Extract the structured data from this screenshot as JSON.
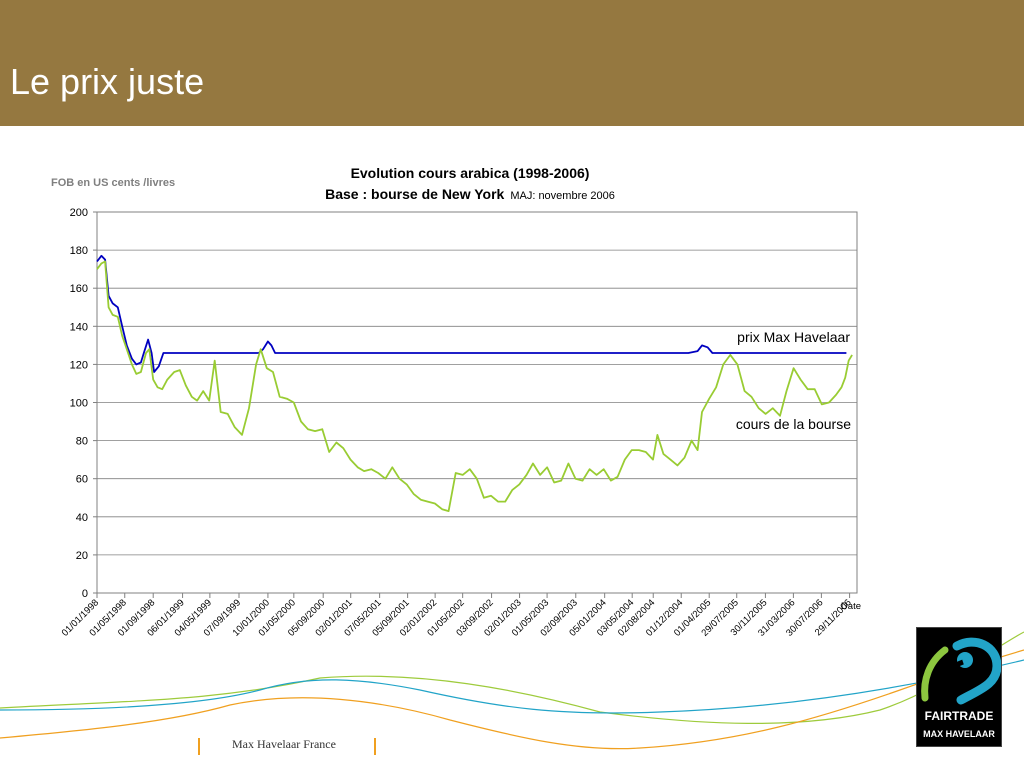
{
  "slide": {
    "title": "Le prix juste",
    "unit_label": "FOB en US cents /livres",
    "footer_text": "Max Havelaar France",
    "logo": {
      "line1": "FAIRTRADE",
      "line2": "MAX HAVELAAR",
      "icon": "fairtrade-mark-icon"
    }
  },
  "colors": {
    "header": "#957840",
    "min_price_line": "#0000c0",
    "market_line": "#99cc33",
    "grid": "#808080",
    "footer_accent": "#f0a020"
  },
  "chart_data": {
    "type": "line",
    "title": "Evolution cours arabica (1998-2006)",
    "subtitle": "Base :  bourse de New York",
    "update_note": "MAJ: novembre 2006",
    "xlabel": "Date",
    "ylabel": "",
    "ylim": [
      0,
      200
    ],
    "yticks": [
      0,
      20,
      40,
      60,
      80,
      100,
      120,
      140,
      160,
      180,
      200
    ],
    "xlim": [
      "1998-01-01",
      "2006-12-31"
    ],
    "xtick_labels": [
      "01/01/1998",
      "01/05/1998",
      "01/09/1998",
      "06/01/1999",
      "04/05/1999",
      "07/09/1999",
      "10/01/2000",
      "01/05/2000",
      "05/09/2000",
      "02/01/2001",
      "07/05/2001",
      "05/09/2001",
      "02/01/2002",
      "01/05/2002",
      "03/09/2002",
      "02/01/2003",
      "01/05/2003",
      "02/09/2003",
      "05/01/2004",
      "03/05/2004",
      "02/08/2004",
      "01/12/2004",
      "01/04/2005",
      "29/07/2005",
      "30/11/2005",
      "31/03/2006",
      "30/07/2006",
      "29/11/2006"
    ],
    "xtick_dates": [
      "1998-01-01",
      "1998-05-01",
      "1998-09-01",
      "1999-01-06",
      "1999-05-04",
      "1999-09-07",
      "2000-01-10",
      "2000-05-01",
      "2000-09-05",
      "2001-01-02",
      "2001-05-07",
      "2001-09-05",
      "2002-01-02",
      "2002-05-01",
      "2002-09-03",
      "2003-01-02",
      "2003-05-01",
      "2003-09-02",
      "2004-01-05",
      "2004-05-03",
      "2004-08-02",
      "2004-12-01",
      "2005-04-01",
      "2005-07-29",
      "2005-11-30",
      "2006-03-31",
      "2006-07-30",
      "2006-11-29"
    ],
    "grid": true,
    "series": [
      {
        "name": "prix Max Havelaar",
        "points": [
          [
            "1998-01-01",
            174
          ],
          [
            "1998-01-20",
            177
          ],
          [
            "1998-02-05",
            175
          ],
          [
            "1998-02-20",
            156
          ],
          [
            "1998-03-10",
            152
          ],
          [
            "1998-04-01",
            150
          ],
          [
            "1998-04-20",
            140
          ],
          [
            "1998-05-10",
            130
          ],
          [
            "1998-06-01",
            123
          ],
          [
            "1998-06-20",
            120
          ],
          [
            "1998-07-10",
            121
          ],
          [
            "1998-07-25",
            127
          ],
          [
            "1998-08-10",
            133
          ],
          [
            "1998-08-25",
            126
          ],
          [
            "1998-09-05",
            116
          ],
          [
            "1998-09-25",
            119
          ],
          [
            "1998-10-15",
            126
          ],
          [
            "1999-01-01",
            126
          ],
          [
            "1999-06-01",
            126
          ],
          [
            "1999-09-01",
            126
          ],
          [
            "1999-12-01",
            126
          ],
          [
            "1999-12-20",
            128
          ],
          [
            "2000-01-10",
            132
          ],
          [
            "2000-01-25",
            130
          ],
          [
            "2000-02-10",
            126
          ],
          [
            "2000-06-01",
            126
          ],
          [
            "2001-06-01",
            126
          ],
          [
            "2002-06-01",
            126
          ],
          [
            "2003-06-01",
            126
          ],
          [
            "2004-06-01",
            126
          ],
          [
            "2005-01-01",
            126
          ],
          [
            "2005-02-10",
            127
          ],
          [
            "2005-03-01",
            130
          ],
          [
            "2005-03-25",
            129
          ],
          [
            "2005-04-15",
            126
          ],
          [
            "2005-06-01",
            126
          ],
          [
            "2006-01-01",
            126
          ],
          [
            "2006-06-01",
            126
          ],
          [
            "2006-11-15",
            126
          ]
        ]
      },
      {
        "name": "cours de la bourse",
        "points": [
          [
            "1998-01-01",
            170
          ],
          [
            "1998-01-20",
            173
          ],
          [
            "1998-02-05",
            174
          ],
          [
            "1998-02-20",
            150
          ],
          [
            "1998-03-10",
            146
          ],
          [
            "1998-04-01",
            145
          ],
          [
            "1998-04-20",
            135
          ],
          [
            "1998-05-10",
            128
          ],
          [
            "1998-06-01",
            120
          ],
          [
            "1998-06-20",
            115
          ],
          [
            "1998-07-10",
            116
          ],
          [
            "1998-08-01",
            126
          ],
          [
            "1998-08-15",
            128
          ],
          [
            "1998-09-01",
            112
          ],
          [
            "1998-09-20",
            108
          ],
          [
            "1998-10-10",
            107
          ],
          [
            "1998-11-01",
            112
          ],
          [
            "1998-12-01",
            116
          ],
          [
            "1998-12-25",
            117
          ],
          [
            "1999-01-20",
            109
          ],
          [
            "1999-02-15",
            103
          ],
          [
            "1999-03-10",
            101
          ],
          [
            "1999-04-05",
            106
          ],
          [
            "1999-05-01",
            101
          ],
          [
            "1999-05-25",
            122
          ],
          [
            "1999-06-20",
            95
          ],
          [
            "1999-07-20",
            94
          ],
          [
            "1999-08-20",
            87
          ],
          [
            "1999-09-20",
            83
          ],
          [
            "1999-10-20",
            97
          ],
          [
            "1999-11-20",
            120
          ],
          [
            "1999-12-10",
            128
          ],
          [
            "2000-01-05",
            118
          ],
          [
            "2000-02-01",
            116
          ],
          [
            "2000-03-01",
            103
          ],
          [
            "2000-04-01",
            102
          ],
          [
            "2000-05-01",
            100
          ],
          [
            "2000-06-01",
            90
          ],
          [
            "2000-07-01",
            86
          ],
          [
            "2000-08-01",
            85
          ],
          [
            "2000-09-01",
            86
          ],
          [
            "2000-10-01",
            74
          ],
          [
            "2000-11-01",
            79
          ],
          [
            "2000-12-01",
            76
          ],
          [
            "2001-01-01",
            70
          ],
          [
            "2001-02-01",
            66
          ],
          [
            "2001-03-01",
            64
          ],
          [
            "2001-04-01",
            65
          ],
          [
            "2001-05-01",
            63
          ],
          [
            "2001-06-01",
            60
          ],
          [
            "2001-07-01",
            66
          ],
          [
            "2001-08-01",
            60
          ],
          [
            "2001-09-01",
            57
          ],
          [
            "2001-10-01",
            52
          ],
          [
            "2001-11-01",
            49
          ],
          [
            "2001-12-01",
            48
          ],
          [
            "2002-01-01",
            47
          ],
          [
            "2002-02-01",
            44
          ],
          [
            "2002-03-01",
            43
          ],
          [
            "2002-04-01",
            63
          ],
          [
            "2002-05-01",
            62
          ],
          [
            "2002-06-01",
            65
          ],
          [
            "2002-07-01",
            60
          ],
          [
            "2002-08-01",
            50
          ],
          [
            "2002-09-01",
            51
          ],
          [
            "2002-10-01",
            48
          ],
          [
            "2002-11-01",
            48
          ],
          [
            "2002-12-01",
            54
          ],
          [
            "2003-01-01",
            57
          ],
          [
            "2003-02-01",
            62
          ],
          [
            "2003-03-01",
            68
          ],
          [
            "2003-04-01",
            62
          ],
          [
            "2003-05-01",
            66
          ],
          [
            "2003-06-01",
            58
          ],
          [
            "2003-07-01",
            59
          ],
          [
            "2003-08-01",
            68
          ],
          [
            "2003-09-01",
            60
          ],
          [
            "2003-10-01",
            59
          ],
          [
            "2003-11-01",
            65
          ],
          [
            "2003-12-01",
            62
          ],
          [
            "2004-01-01",
            65
          ],
          [
            "2004-02-01",
            59
          ],
          [
            "2004-03-01",
            61
          ],
          [
            "2004-04-01",
            70
          ],
          [
            "2004-05-01",
            75
          ],
          [
            "2004-06-01",
            75
          ],
          [
            "2004-07-01",
            74
          ],
          [
            "2004-08-01",
            70
          ],
          [
            "2004-08-20",
            83
          ],
          [
            "2004-09-15",
            73
          ],
          [
            "2004-10-15",
            70
          ],
          [
            "2004-11-15",
            67
          ],
          [
            "2004-12-15",
            71
          ],
          [
            "2005-01-15",
            80
          ],
          [
            "2005-02-10",
            75
          ],
          [
            "2005-03-01",
            95
          ],
          [
            "2005-04-01",
            102
          ],
          [
            "2005-05-01",
            108
          ],
          [
            "2005-06-01",
            120
          ],
          [
            "2005-07-01",
            125
          ],
          [
            "2005-08-01",
            120
          ],
          [
            "2005-09-01",
            106
          ],
          [
            "2005-10-01",
            103
          ],
          [
            "2005-11-01",
            97
          ],
          [
            "2005-12-01",
            94
          ],
          [
            "2006-01-01",
            97
          ],
          [
            "2006-02-01",
            93
          ],
          [
            "2006-03-01",
            106
          ],
          [
            "2006-04-01",
            118
          ],
          [
            "2006-05-01",
            112
          ],
          [
            "2006-06-01",
            107
          ],
          [
            "2006-07-01",
            107
          ],
          [
            "2006-08-01",
            99
          ],
          [
            "2006-09-01",
            100
          ],
          [
            "2006-10-01",
            104
          ],
          [
            "2006-10-25",
            108
          ],
          [
            "2006-11-10",
            113
          ],
          [
            "2006-11-25",
            122
          ],
          [
            "2006-12-10",
            125
          ]
        ]
      }
    ],
    "annotations": [
      {
        "text": "prix Max Havelaar",
        "series": "prix Max Havelaar"
      },
      {
        "text": "cours de la bourse",
        "series": "cours de la bourse"
      }
    ]
  }
}
